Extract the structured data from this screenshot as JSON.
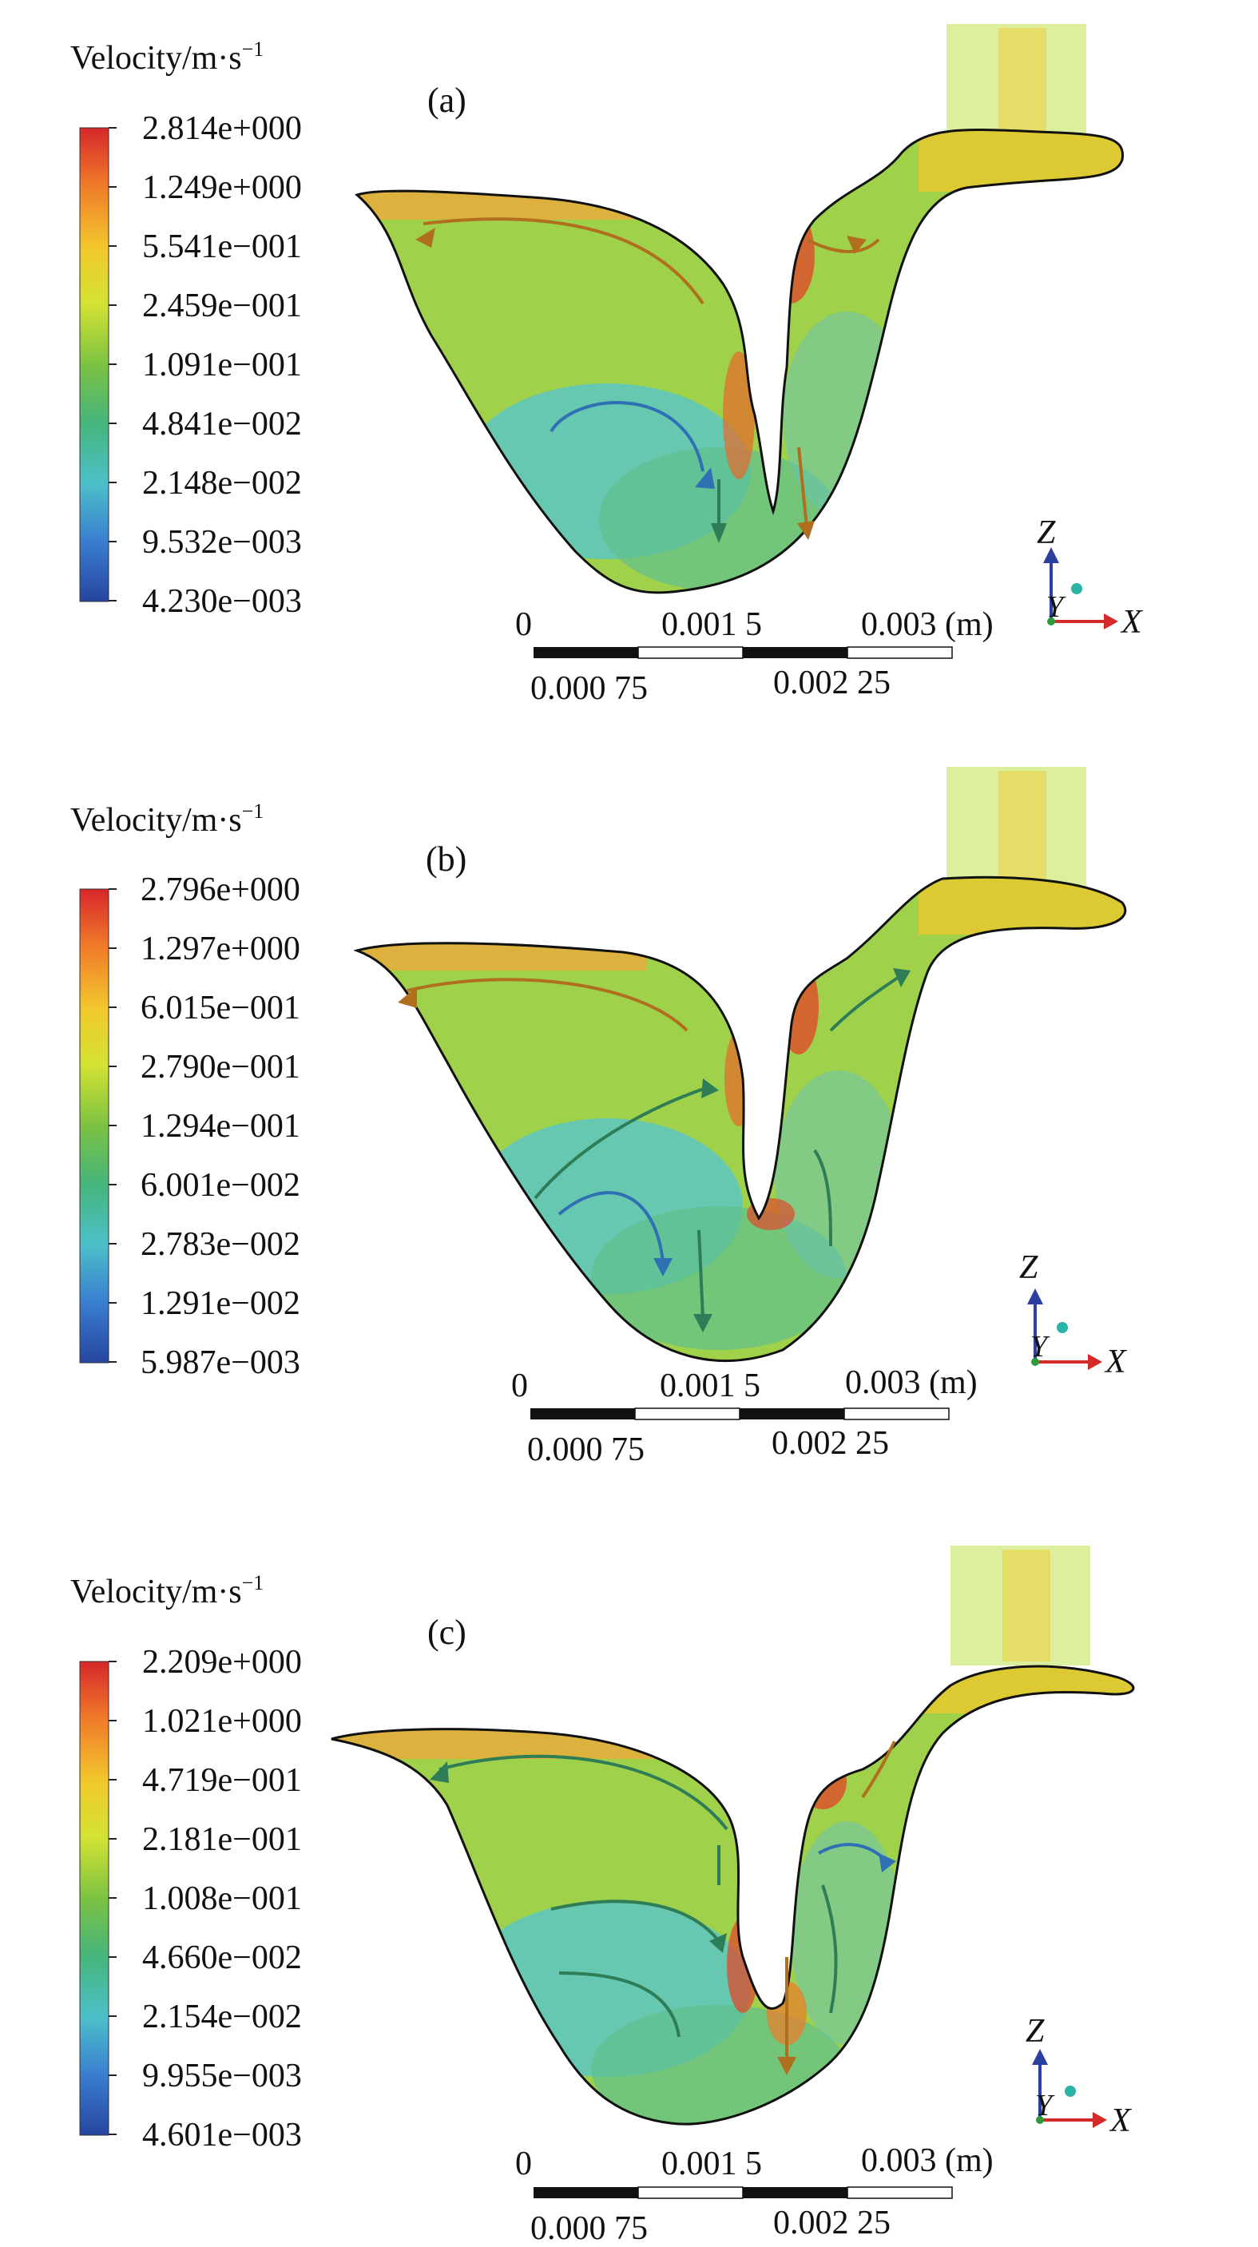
{
  "chart_data": [
    {
      "type": "vector-field",
      "panel_label": "(a)",
      "legend_title_main": "Velocity/m·s",
      "legend_title_sup": "−1",
      "legend_values": [
        "2.814e+000",
        "1.249e+000",
        "5.541e−001",
        "2.459e−001",
        "1.091e−001",
        "4.841e−002",
        "2.148e−002",
        "9.532e−003",
        "4.230e−003"
      ],
      "scale_labels": [
        "0",
        "0.001 5",
        "0.003 (m)",
        "0.000 75",
        "0.002 25"
      ],
      "axes_labels": {
        "z": "Z",
        "y": "Y",
        "x": "X"
      }
    },
    {
      "type": "vector-field",
      "panel_label": "(b)",
      "legend_title_main": "Velocity/m·s",
      "legend_title_sup": "−1",
      "legend_values": [
        "2.796e+000",
        "1.297e+000",
        "6.015e−001",
        "2.790e−001",
        "1.294e−001",
        "6.001e−002",
        "2.783e−002",
        "1.291e−002",
        "5.987e−003"
      ],
      "scale_labels": [
        "0",
        "0.001 5",
        "0.003 (m)",
        "0.000 75",
        "0.002 25"
      ],
      "axes_labels": {
        "z": "Z",
        "y": "Y",
        "x": "X"
      }
    },
    {
      "type": "vector-field",
      "panel_label": "(c)",
      "legend_title_main": "Velocity/m·s",
      "legend_title_sup": "−1",
      "legend_values": [
        "2.209e+000",
        "1.021e+000",
        "4.719e−001",
        "2.181e−001",
        "1.008e−001",
        "4.660e−002",
        "2.154e−002",
        "9.955e−003",
        "4.601e−003"
      ],
      "scale_labels": [
        "0",
        "0.001 5",
        "0.003 (m)",
        "0.000 75",
        "0.002 25"
      ],
      "axes_labels": {
        "z": "Z",
        "y": "Y",
        "x": "X"
      }
    }
  ],
  "colors": {
    "scale_stops": [
      "#d7262b",
      "#f07a2a",
      "#f2c72c",
      "#d4e233",
      "#7cc242",
      "#46b57a",
      "#4cc0c8",
      "#3a7fd1",
      "#26459e"
    ],
    "outline": "#111111",
    "axis_z": "#2b3fa0",
    "axis_x": "#d42a2a",
    "axis_y_dot": "#2ab3a6",
    "streamline_dark": "#2e7d57",
    "streamline_brown": "#b06f1f",
    "streamline_blue": "#2f6fb3"
  }
}
